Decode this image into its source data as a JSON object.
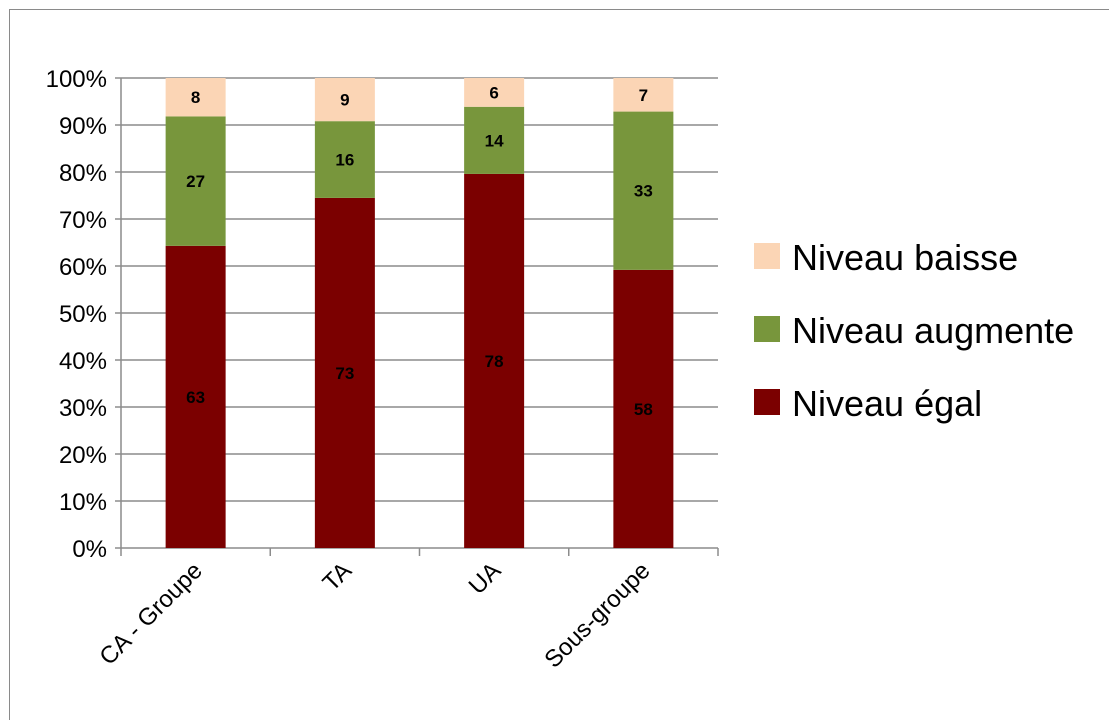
{
  "chart_data": {
    "type": "bar",
    "stacked": true,
    "categories": [
      "CA - Groupe",
      "TA",
      "UA",
      "Sous-groupe"
    ],
    "series": [
      {
        "name": "Niveau égal",
        "values": [
          63,
          73,
          78,
          58
        ],
        "color": "#7b0000"
      },
      {
        "name": "Niveau augmente",
        "values": [
          27,
          16,
          14,
          33
        ],
        "color": "#78963c"
      },
      {
        "name": "Niveau baisse",
        "values": [
          8,
          9,
          6,
          7
        ],
        "color": "#fbd5b5"
      }
    ],
    "y_ticks": [
      "0%",
      "10%",
      "20%",
      "30%",
      "40%",
      "50%",
      "60%",
      "70%",
      "80%",
      "90%",
      "100%"
    ],
    "ylim": [
      0,
      100
    ],
    "grid": true,
    "legend_position": "right",
    "legend_order": [
      "Niveau baisse",
      "Niveau augmente",
      "Niveau égal"
    ]
  }
}
